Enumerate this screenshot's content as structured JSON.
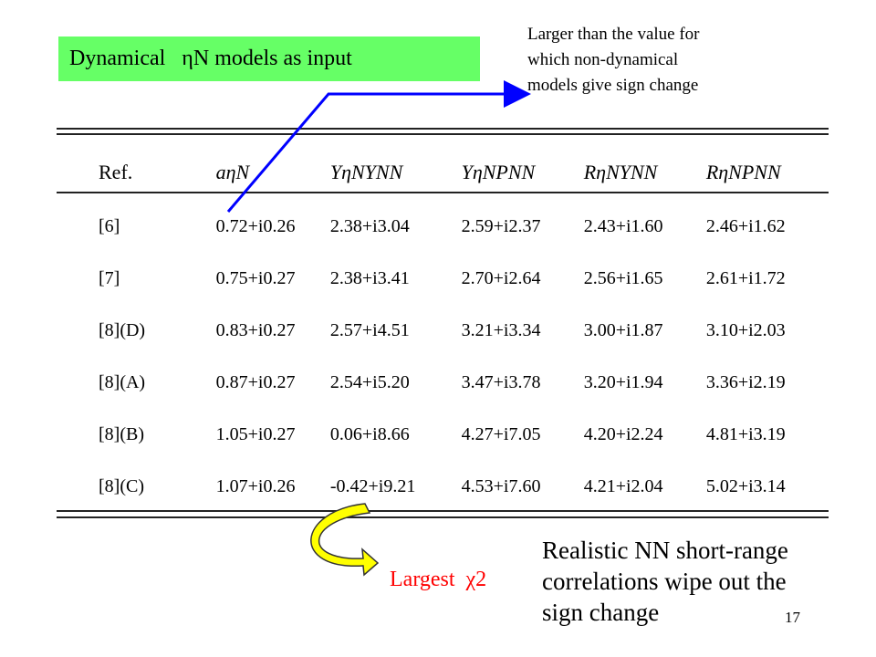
{
  "header": {
    "title_prefix": "Dynamical",
    "title_symbol": "η",
    "title_rest": "N models as input"
  },
  "note_top": [
    "Larger than the value for",
    "which non-dynamical",
    "models give sign change"
  ],
  "table": {
    "headers": [
      "Ref.",
      "aηN",
      "YηNYNN",
      "YηNPNN",
      "RηNYNN",
      "RηNPNN"
    ],
    "rows": [
      [
        "[6]",
        "0.72+i0.26",
        "2.38+i3.04",
        "2.59+i2.37",
        "2.43+i1.60",
        "2.46+i1.62"
      ],
      [
        "[7]",
        "0.75+i0.27",
        "2.38+i3.41",
        "2.70+i2.64",
        "2.56+i1.65",
        "2.61+i1.72"
      ],
      [
        "[8](D)",
        "0.83+i0.27",
        "2.57+i4.51",
        "3.21+i3.34",
        "3.00+i1.87",
        "3.10+i2.03"
      ],
      [
        "[8](A)",
        "0.87+i0.27",
        "2.54+i5.20",
        "3.47+i3.78",
        "3.20+i1.94",
        "3.36+i2.19"
      ],
      [
        "[8](B)",
        "1.05+i0.27",
        "0.06+i8.66",
        "4.27+i7.05",
        "4.20+i2.24",
        "4.81+i3.19"
      ],
      [
        "[8](C)",
        "1.07+i0.26",
        "-0.42+i9.21",
        "4.53+i7.60",
        "4.21+i2.04",
        "5.02+i3.14"
      ]
    ]
  },
  "largest_label": "Largest",
  "largest_symbol": "χ2",
  "bottom_note": [
    "Realistic NN short-range",
    "correlations wipe out the",
    "sign change"
  ],
  "page_number": "17",
  "colors": {
    "green_box": "#66ff66",
    "arrow_line": "#0000ff",
    "curved_arrow": "#ffff00",
    "largest_text": "#ff0000"
  }
}
